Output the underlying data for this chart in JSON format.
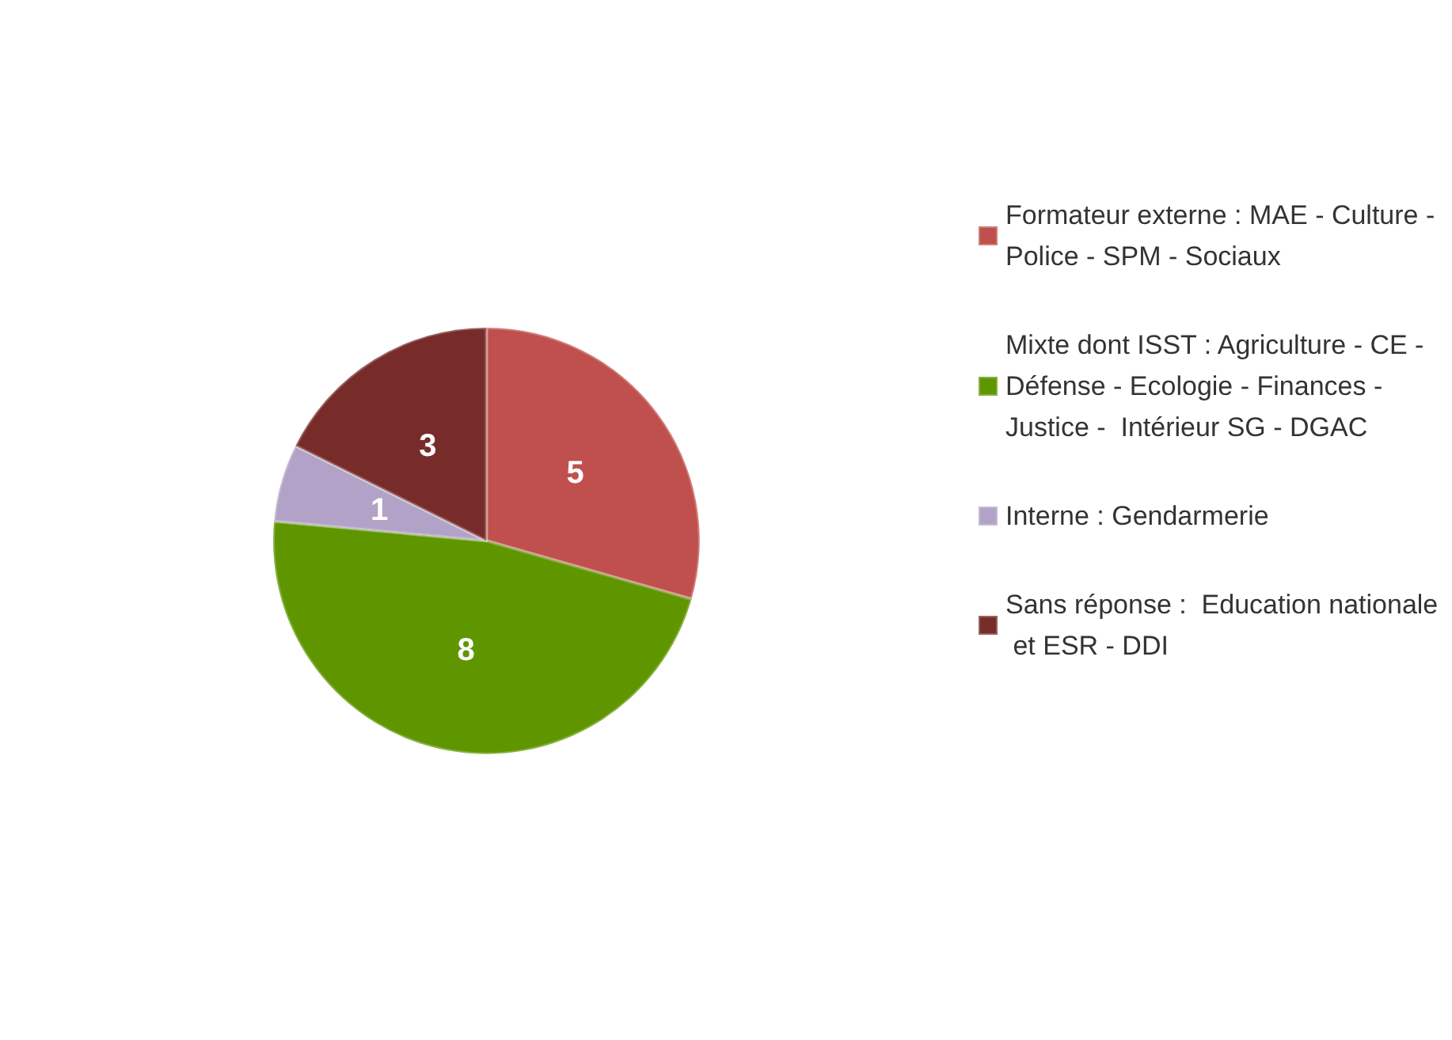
{
  "chart_data": {
    "type": "pie",
    "categories": [
      "Formateur externe : MAE - Culture - Police - SPM - Sociaux",
      "Mixte dont ISST : Agriculture - CE - Défense - Ecologie - Finances - Justice -  Intérieur SG - DGAC",
      "Interne : Gendarmerie",
      "Sans réponse :  Education nationale et ESR - DDI"
    ],
    "values": [
      5,
      8,
      1,
      3
    ],
    "colors": [
      "#c0504d",
      "#5f9600",
      "#b3a2c7",
      "#772c2a"
    ],
    "data_labels": true,
    "legend": "right"
  }
}
